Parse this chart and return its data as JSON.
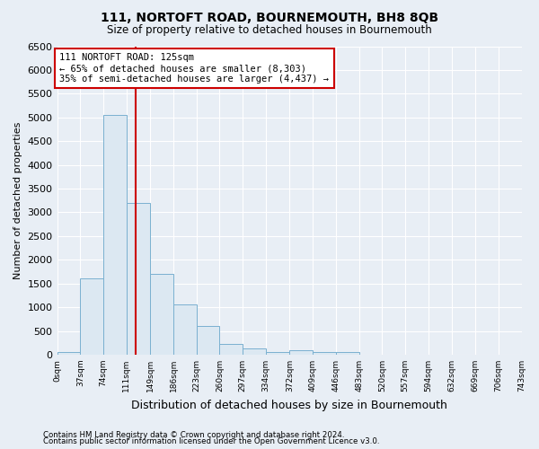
{
  "title": "111, NORTOFT ROAD, BOURNEMOUTH, BH8 8QB",
  "subtitle": "Size of property relative to detached houses in Bournemouth",
  "xlabel": "Distribution of detached houses by size in Bournemouth",
  "ylabel": "Number of detached properties",
  "bar_edges": [
    0,
    37,
    74,
    111,
    149,
    186,
    223,
    260,
    297,
    334,
    372,
    409,
    446,
    483,
    520,
    557,
    594,
    632,
    669,
    706,
    743
  ],
  "bar_heights": [
    50,
    1600,
    5050,
    3200,
    1700,
    1050,
    600,
    220,
    130,
    50,
    100,
    50,
    50,
    0,
    0,
    0,
    0,
    0,
    0,
    0
  ],
  "bar_color": "#dce8f2",
  "bar_edge_color": "#7ab0d0",
  "vline_x": 125,
  "vline_color": "#cc0000",
  "annotation_text": "111 NORTOFT ROAD: 125sqm\n← 65% of detached houses are smaller (8,303)\n35% of semi-detached houses are larger (4,437) →",
  "annotation_box_color": "#cc0000",
  "ylim_max": 6500,
  "yticks": [
    0,
    500,
    1000,
    1500,
    2000,
    2500,
    3000,
    3500,
    4000,
    4500,
    5000,
    5500,
    6000,
    6500
  ],
  "tick_labels": [
    "0sqm",
    "37sqm",
    "74sqm",
    "111sqm",
    "149sqm",
    "186sqm",
    "223sqm",
    "260sqm",
    "297sqm",
    "334sqm",
    "372sqm",
    "409sqm",
    "446sqm",
    "483sqm",
    "520sqm",
    "557sqm",
    "594sqm",
    "632sqm",
    "669sqm",
    "706sqm",
    "743sqm"
  ],
  "footnote1": "Contains HM Land Registry data © Crown copyright and database right 2024.",
  "footnote2": "Contains public sector information licensed under the Open Government Licence v3.0.",
  "bg_color": "#e8eef5",
  "plot_bg_color": "#e8eef5",
  "grid_color": "#ffffff"
}
